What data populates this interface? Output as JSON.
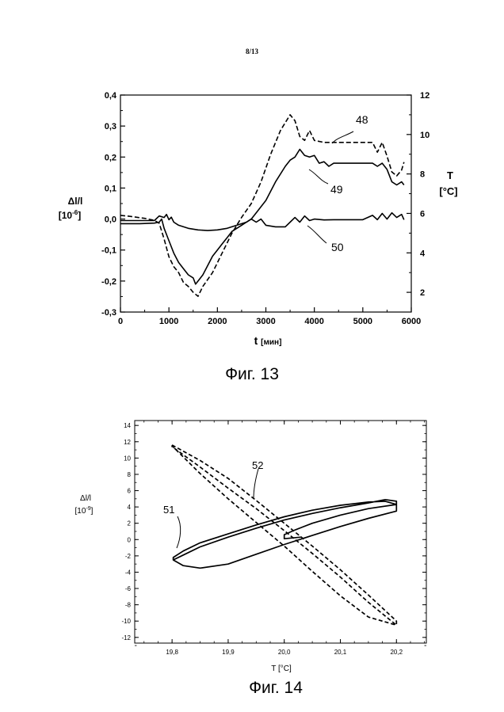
{
  "page_number": "8/13",
  "chart_data": [
    {
      "type": "line",
      "caption": "Фиг. 13",
      "xlabel_main": "t",
      "xlabel_unit": "[мин]",
      "ylabel_left_line1": "Δl/l",
      "ylabel_left_line2": "[10",
      "ylabel_left_exp": "-6",
      "ylabel_left_close": "]",
      "ylabel_right_line1": "T",
      "ylabel_right_line2": "[°C]",
      "xlim": [
        0,
        6000
      ],
      "ylim_left": [
        -0.3,
        0.4
      ],
      "ylim_right": [
        1,
        12
      ],
      "grid": false,
      "x_ticks": [
        "0",
        "1000",
        "2000",
        "3000",
        "4000",
        "5000",
        "6000"
      ],
      "y_left_ticks": [
        "-0,3",
        "-0,2",
        "-0,1",
        "0,0",
        "0,1",
        "0,2",
        "0,3",
        "0,4"
      ],
      "y_right_ticks": [
        "2",
        "4",
        "6",
        "8",
        "10",
        "12"
      ],
      "series": [
        {
          "name": "48",
          "axis": "right",
          "style": "dashed",
          "x": [
            0,
            200,
            500,
            700,
            800,
            900,
            1000,
            1100,
            1200,
            1300,
            1400,
            1500,
            1600,
            1700,
            1900,
            2100,
            2300,
            2500,
            2700,
            2900,
            3100,
            3300,
            3500,
            3600,
            3700,
            3800,
            3900,
            4000,
            4200,
            4400,
            5000,
            5200,
            5300,
            5400,
            5500,
            5600,
            5700,
            5800,
            5850
          ],
          "values": [
            5.9,
            5.85,
            5.75,
            5.65,
            5.5,
            4.7,
            3.8,
            3.3,
            3.0,
            2.5,
            2.3,
            2.0,
            1.8,
            2.3,
            3.0,
            4.0,
            5.0,
            5.8,
            6.5,
            7.6,
            9.0,
            10.2,
            11.0,
            10.7,
            9.9,
            9.7,
            10.2,
            9.7,
            9.6,
            9.6,
            9.6,
            9.6,
            9.1,
            9.6,
            8.9,
            8.1,
            7.9,
            8.2,
            8.6
          ]
        },
        {
          "name": "49",
          "axis": "left",
          "style": "solid",
          "x": [
            0,
            400,
            700,
            800,
            850,
            900,
            1000,
            1100,
            1200,
            1300,
            1400,
            1500,
            1550,
            1600,
            1700,
            1800,
            1900,
            2000,
            2100,
            2200,
            2300,
            2400,
            2500,
            2600,
            2700,
            2800,
            3000,
            3200,
            3400,
            3500,
            3600,
            3700,
            3800,
            3900,
            4000,
            4100,
            4200,
            4300,
            4400,
            5000,
            5200,
            5300,
            5400,
            5500,
            5600,
            5700,
            5800,
            5850
          ],
          "values": [
            -0.015,
            -0.015,
            -0.013,
            -0.01,
            0.0,
            -0.03,
            -0.07,
            -0.11,
            -0.14,
            -0.16,
            -0.18,
            -0.19,
            -0.21,
            -0.2,
            -0.18,
            -0.15,
            -0.12,
            -0.1,
            -0.08,
            -0.06,
            -0.04,
            -0.03,
            -0.02,
            -0.01,
            0.0,
            0.02,
            0.06,
            0.12,
            0.17,
            0.19,
            0.2,
            0.225,
            0.205,
            0.2,
            0.205,
            0.18,
            0.185,
            0.17,
            0.18,
            0.18,
            0.18,
            0.17,
            0.18,
            0.16,
            0.12,
            0.11,
            0.12,
            0.11
          ]
        },
        {
          "name": "50",
          "axis": "left",
          "style": "solid",
          "x": [
            0,
            300,
            700,
            800,
            900,
            950,
            1000,
            1050,
            1100,
            1200,
            1400,
            1600,
            1800,
            2000,
            2200,
            2400,
            2600,
            2700,
            2800,
            2900,
            3000,
            3200,
            3400,
            3500,
            3600,
            3700,
            3800,
            3900,
            4000,
            4200,
            4400,
            4600,
            5000,
            5200,
            5300,
            5400,
            5500,
            5600,
            5700,
            5800,
            5850
          ],
          "values": [
            -0.005,
            -0.005,
            -0.005,
            0.01,
            0.005,
            0.015,
            -0.002,
            0.006,
            -0.01,
            -0.02,
            -0.03,
            -0.035,
            -0.037,
            -0.035,
            -0.03,
            -0.02,
            -0.01,
            0.0,
            -0.01,
            0.0,
            -0.02,
            -0.025,
            -0.025,
            -0.01,
            0.005,
            -0.01,
            0.01,
            -0.005,
            0.0,
            -0.003,
            -0.002,
            -0.002,
            -0.002,
            0.012,
            -0.002,
            0.018,
            0.0,
            0.02,
            0.005,
            0.015,
            -0.002
          ]
        }
      ],
      "annotations": [
        "48",
        "49",
        "50"
      ]
    },
    {
      "type": "line",
      "caption": "Фиг. 14",
      "xlabel": "T [°C]",
      "ylabel_line1": "Δl/l",
      "ylabel_line2": "[10",
      "ylabel_exp": "-9",
      "ylabel_close": "]",
      "xlim": [
        19.8,
        20.2
      ],
      "ylim": [
        -12,
        14
      ],
      "grid": false,
      "x_ticks": [
        "19,8",
        "19,9",
        "20,0",
        "20,1",
        "20,2"
      ],
      "y_ticks": [
        "-12",
        "-10",
        "-8",
        "-6",
        "-4",
        "-2",
        "0",
        "2",
        "4",
        "6",
        "8",
        "10",
        "12",
        "14"
      ],
      "series": [
        {
          "name": "51",
          "style": "solid",
          "x": [
            19.802,
            19.82,
            19.85,
            19.9,
            19.95,
            20.0,
            20.05,
            20.1,
            20.15,
            20.2,
            20.2,
            20.18,
            20.15,
            20.1,
            20.05,
            20.0,
            19.95,
            19.9,
            19.85,
            19.82,
            19.802,
            19.802,
            19.82,
            19.85,
            19.9,
            19.95,
            20.0,
            20.05,
            20.1,
            20.15,
            20.18,
            20.2,
            20.2,
            20.15,
            20.1,
            20.05,
            20.02,
            20.0,
            20.0,
            20.03
          ],
          "values": [
            -2.5,
            -3.2,
            -3.5,
            -3.0,
            -1.8,
            -0.6,
            0.5,
            1.6,
            2.6,
            3.5,
            4.3,
            4.7,
            4.6,
            4.2,
            3.6,
            2.8,
            1.8,
            0.7,
            -0.4,
            -1.4,
            -2.2,
            -2.5,
            -1.9,
            -0.9,
            0.3,
            1.4,
            2.4,
            3.2,
            3.9,
            4.5,
            4.9,
            4.7,
            4.3,
            3.8,
            3.0,
            2.0,
            1.2,
            0.6,
            0.1,
            0.3
          ]
        },
        {
          "name": "52",
          "style": "dashed",
          "x": [
            19.8,
            19.85,
            19.9,
            19.95,
            20.0,
            20.05,
            20.1,
            20.15,
            20.2,
            20.2,
            20.15,
            20.1,
            20.05,
            20.0,
            19.95,
            19.9,
            19.85,
            19.8,
            19.8,
            19.85,
            19.9,
            19.95,
            20.0,
            20.05,
            20.1,
            20.15,
            20.2
          ],
          "values": [
            11.6,
            9.7,
            7.5,
            4.8,
            2.0,
            -0.8,
            -3.7,
            -6.8,
            -10.0,
            -10.5,
            -7.7,
            -4.6,
            -1.7,
            1.1,
            3.8,
            6.3,
            8.9,
            11.4,
            11.5,
            8.1,
            5.0,
            2.1,
            -0.8,
            -3.9,
            -6.9,
            -9.5,
            -10.5
          ]
        }
      ],
      "annotations": [
        "51",
        "52"
      ]
    }
  ]
}
